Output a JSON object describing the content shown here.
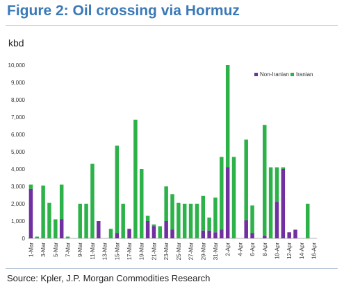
{
  "figure": {
    "title": "Figure 2: Oil crossing via Hormuz",
    "unit": "kbd",
    "source": "Source: Kpler, J.P. Morgan Commodities Research"
  },
  "colors": {
    "non_iranian": "#7030a0",
    "iranian": "#2db24a"
  },
  "chart_data": {
    "type": "bar",
    "stacked": true,
    "categories": [
      "1-Mar",
      "2-Mar",
      "3-Mar",
      "4-Mar",
      "5-Mar",
      "6-Mar",
      "7-Mar",
      "8-Mar",
      "9-Mar",
      "10-Mar",
      "11-Mar",
      "12-Mar",
      "13-Mar",
      "14-Mar",
      "15-Mar",
      "16-Mar",
      "17-Mar",
      "18-Mar",
      "19-Mar",
      "20-Mar",
      "21-Mar",
      "22-Mar",
      "23-Mar",
      "24-Mar",
      "25-Mar",
      "26-Mar",
      "27-Mar",
      "28-Mar",
      "29-Mar",
      "30-Mar",
      "31-Mar",
      "1-Apr",
      "2-Apr",
      "3-Apr",
      "4-Apr",
      "5-Apr",
      "6-Apr",
      "7-Apr",
      "8-Apr",
      "9-Apr",
      "10-Apr",
      "11-Apr",
      "12-Apr",
      "13-Apr",
      "14-Apr",
      "15-Apr",
      "16-Apr"
    ],
    "x_tick_labels": [
      "1-Mar",
      "3-Mar",
      "5-Mar",
      "7-Mar",
      "9-Mar",
      "11-Mar",
      "13-Mar",
      "15-Mar",
      "17-Mar",
      "19-Mar",
      "21-Mar",
      "23-Mar",
      "25-Mar",
      "27-Mar",
      "29-Mar",
      "31-Mar",
      "2-Apr",
      "4-Apr",
      "6-Apr",
      "8-Apr",
      "10-Apr",
      "12-Apr",
      "14-Apr",
      "16-Apr"
    ],
    "series": [
      {
        "name": "Non-Iranian",
        "values": [
          2850,
          0,
          0,
          0,
          0,
          1100,
          0,
          0,
          0,
          0,
          0,
          1000,
          0,
          0,
          300,
          0,
          550,
          0,
          0,
          1000,
          700,
          0,
          1000,
          500,
          0,
          0,
          0,
          0,
          450,
          450,
          350,
          500,
          4100,
          0,
          0,
          1050,
          300,
          0,
          150,
          0,
          2100,
          4000,
          350,
          500,
          0,
          0,
          0
        ]
      },
      {
        "name": "Iranian",
        "values": [
          250,
          100,
          3050,
          2050,
          1100,
          2000,
          100,
          0,
          2000,
          2000,
          4300,
          0,
          0,
          550,
          5050,
          2000,
          0,
          6850,
          4000,
          300,
          100,
          700,
          2000,
          2050,
          2050,
          2000,
          2000,
          2000,
          2000,
          750,
          2000,
          4200,
          5900,
          4700,
          0,
          4650,
          1600,
          0,
          6400,
          4100,
          2000,
          100,
          0,
          0,
          0,
          2000,
          0
        ]
      }
    ],
    "ylim": [
      0,
      10000
    ],
    "yticks": [
      0,
      1000,
      2000,
      3000,
      4000,
      5000,
      6000,
      7000,
      8000,
      9000,
      10000
    ],
    "ytick_labels": [
      "0",
      "1,000",
      "2,000",
      "3,000",
      "4,000",
      "5,000",
      "6,000",
      "7,000",
      "8,000",
      "9,000",
      "10,000"
    ],
    "legend_position": "top-right",
    "grid": false
  }
}
